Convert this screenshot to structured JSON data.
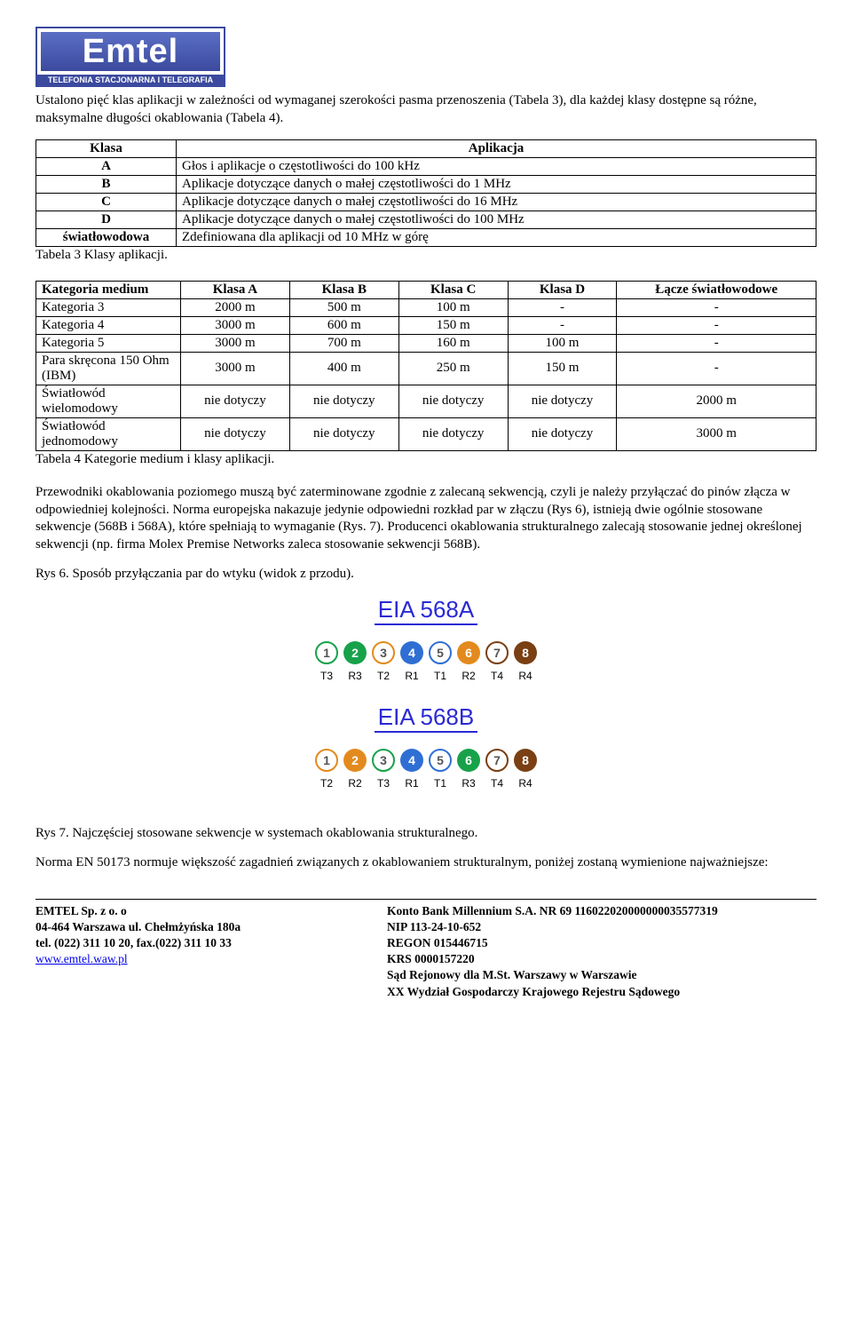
{
  "logo": {
    "name": "Emtel",
    "tag": "TELEFONIA STACJONARNA I TELEGRAFIA"
  },
  "intro": "Ustalono pięć klas aplikacji w zależności od wymaganej szerokości pasma przenoszenia (Tabela 3), dla każdej klasy dostępne są różne, maksymalne długości okablowania (Tabela 4).",
  "table1": {
    "head": [
      "Klasa",
      "Aplikacja"
    ],
    "rows": [
      [
        "A",
        "Głos i aplikacje o częstotliwości do 100 kHz"
      ],
      [
        "B",
        "Aplikacje dotyczące danych o małej częstotliwości do 1 MHz"
      ],
      [
        "C",
        "Aplikacje dotyczące danych o małej częstotliwości do 16 MHz"
      ],
      [
        "D",
        "Aplikacje dotyczące danych o małej częstotliwości do 100 MHz"
      ],
      [
        "światłowodowa",
        "Zdefiniowana dla aplikacji od 10 MHz w górę"
      ]
    ],
    "caption": "Tabela 3 Klasy aplikacji."
  },
  "table2": {
    "head": [
      "Kategoria medium",
      "Klasa A",
      "Klasa B",
      "Klasa C",
      "Klasa D",
      "Łącze światłowodowe"
    ],
    "rows": [
      [
        "Kategoria 3",
        "2000 m",
        "500 m",
        "100 m",
        "-",
        "-"
      ],
      [
        "Kategoria 4",
        "3000 m",
        "600 m",
        "150 m",
        "-",
        "-"
      ],
      [
        "Kategoria 5",
        "3000 m",
        "700 m",
        "160 m",
        "100 m",
        "-"
      ],
      [
        "Para skręcona 150 Ohm (IBM)",
        "3000 m",
        "400 m",
        "250 m",
        "150 m",
        "-"
      ],
      [
        "Światłowód wielomodowy",
        "nie dotyczy",
        "nie dotyczy",
        "nie dotyczy",
        "nie dotyczy",
        "2000 m"
      ],
      [
        "Światłowód jednomodowy",
        "nie dotyczy",
        "nie dotyczy",
        "nie dotyczy",
        "nie dotyczy",
        "3000 m"
      ]
    ],
    "caption": "Tabela 4 Kategorie medium i klasy aplikacji."
  },
  "para2": "Przewodniki okablowania poziomego muszą być zaterminowane zgodnie z zalecaną sekwencją, czyli je należy przyłączać do pinów złącza w odpowiedniej kolejności. Norma europejska nakazuje jedynie odpowiedni rozkład par w złączu (Rys 6), istnieją dwie ogólnie stosowane sekwencje (568B i 568A), które spełniają to wymaganie (Rys. 7). Producenci okablowania strukturalnego zalecają stosowanie jednej określonej sekwencji (np. firma Molex Premise Networks zaleca stosowanie sekwencji 568B).",
  "rys6": "Rys 6. Sposób przyłączania par do wtyku (widok z przodu).",
  "eia": {
    "a": {
      "title": "EIA 568A",
      "pins": [
        {
          "n": "1",
          "lbl": "T3",
          "solid": false,
          "ring": "#17a24a"
        },
        {
          "n": "2",
          "lbl": "R3",
          "solid": true,
          "bg": "#17a24a"
        },
        {
          "n": "3",
          "lbl": "T2",
          "solid": false,
          "ring": "#e38a1e"
        },
        {
          "n": "4",
          "lbl": "R1",
          "solid": true,
          "bg": "#2f6fd4"
        },
        {
          "n": "5",
          "lbl": "T1",
          "solid": false,
          "ring": "#2f6fd4"
        },
        {
          "n": "6",
          "lbl": "R2",
          "solid": true,
          "bg": "#e38a1e"
        },
        {
          "n": "7",
          "lbl": "T4",
          "solid": false,
          "ring": "#7a3f13"
        },
        {
          "n": "8",
          "lbl": "R4",
          "solid": true,
          "bg": "#7a3f13"
        }
      ]
    },
    "b": {
      "title": "EIA 568B",
      "pins": [
        {
          "n": "1",
          "lbl": "T2",
          "solid": false,
          "ring": "#e38a1e"
        },
        {
          "n": "2",
          "lbl": "R2",
          "solid": true,
          "bg": "#e38a1e"
        },
        {
          "n": "3",
          "lbl": "T3",
          "solid": false,
          "ring": "#17a24a"
        },
        {
          "n": "4",
          "lbl": "R1",
          "solid": true,
          "bg": "#2f6fd4"
        },
        {
          "n": "5",
          "lbl": "T1",
          "solid": false,
          "ring": "#2f6fd4"
        },
        {
          "n": "6",
          "lbl": "R3",
          "solid": true,
          "bg": "#17a24a"
        },
        {
          "n": "7",
          "lbl": "T4",
          "solid": false,
          "ring": "#7a3f13"
        },
        {
          "n": "8",
          "lbl": "R4",
          "solid": true,
          "bg": "#7a3f13"
        }
      ]
    }
  },
  "rys7": "Rys 7. Najczęściej stosowane sekwencje w systemach okablowania strukturalnego.",
  "para3": "Norma EN 50173 normuje większość zagadnień związanych z okablowaniem strukturalnym, poniżej zostaną wymienione najważniejsze:",
  "footer": {
    "l1": "EMTEL  Sp. z o. o",
    "l2": "04-464 Warszawa ul. Chełmżyńska 180a",
    "l3": "tel. (022) 311 10 20, fax.(022) 311 10 33",
    "l4": "www.emtel.waw.pl",
    "r1": "Konto Bank Millennium S.A. NR 69 116022020000000035577319",
    "r2": "NIP 113-24-10-652",
    "r3": "REGON 015446715",
    "r4": "KRS 0000157220",
    "r5": "Sąd Rejonowy dla M.St. Warszawy w Warszawie",
    "r6": "XX Wydział Gospodarczy Krajowego Rejestru Sądowego"
  }
}
